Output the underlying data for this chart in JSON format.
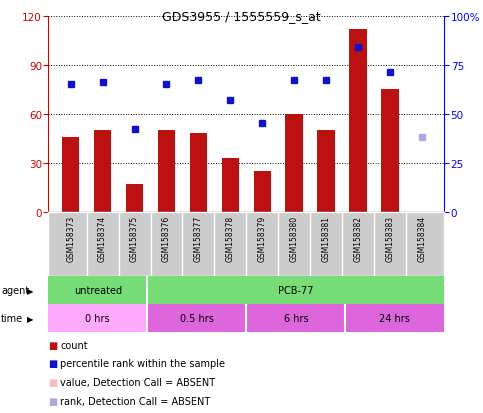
{
  "title": "GDS3955 / 1555559_s_at",
  "samples": [
    "GSM158373",
    "GSM158374",
    "GSM158375",
    "GSM158376",
    "GSM158377",
    "GSM158378",
    "GSM158379",
    "GSM158380",
    "GSM158381",
    "GSM158382",
    "GSM158383",
    "GSM158384"
  ],
  "bar_values": [
    46,
    50,
    17,
    50,
    48,
    33,
    25,
    60,
    50,
    112,
    75,
    null
  ],
  "bar_color_normal": "#bb1111",
  "bar_color_absent": "#ffbbbb",
  "dot_values": [
    65,
    66,
    42,
    65,
    67,
    57,
    45,
    67,
    67,
    84,
    71,
    38
  ],
  "dot_absent": [
    false,
    false,
    false,
    false,
    false,
    false,
    false,
    false,
    false,
    false,
    false,
    true
  ],
  "dot_color_normal": "#1111cc",
  "dot_color_absent": "#aaaadd",
  "ylim_left": [
    0,
    120
  ],
  "ylim_right": [
    0,
    100
  ],
  "yticks_left": [
    0,
    30,
    60,
    90,
    120
  ],
  "yticks_right": [
    0,
    25,
    50,
    75,
    100
  ],
  "yticklabels_right": [
    "0",
    "25",
    "50",
    "75",
    "100%"
  ],
  "plot_bg": "#ffffff",
  "bar_width": 0.55,
  "agent_untreated_color": "#77dd77",
  "agent_pcb_color": "#77dd77",
  "time_0_color": "#ffaaff",
  "time_other_color": "#dd66dd",
  "sample_bg_color": "#cccccc",
  "sample_border_color": "#ffffff"
}
